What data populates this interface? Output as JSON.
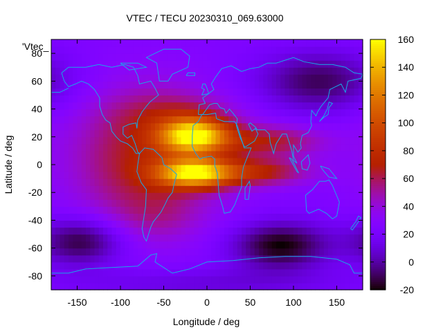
{
  "chart_data": {
    "type": "heatmap",
    "title": "VTEC / TECU 20230310_069.63000",
    "xlabel": "Longitude / deg",
    "ylabel": "Latitude / deg",
    "series_key": "'Vtec_",
    "xlim": [
      -180,
      180
    ],
    "ylim": [
      -90,
      90
    ],
    "xticks": [
      -150,
      -100,
      -50,
      0,
      50,
      100,
      150
    ],
    "yticks": [
      -80,
      -60,
      -40,
      -20,
      0,
      20,
      40,
      60,
      80
    ],
    "colorbar": {
      "range": [
        -20,
        160
      ],
      "ticks": [
        -20,
        0,
        20,
        40,
        60,
        80,
        100,
        120,
        140,
        160
      ],
      "palette": "black-purple-red-orange-yellow"
    },
    "background_value": 25,
    "features": [
      {
        "name": "equatorial crest north",
        "lon": -15,
        "lat": 21,
        "slon": 28,
        "slat": 9,
        "value": 140
      },
      {
        "name": "equatorial crest south",
        "lon": -15,
        "lat": -6,
        "slon": 30,
        "slat": 7,
        "value": 130
      },
      {
        "name": "dayside bulge",
        "lon": -70,
        "lat": 5,
        "slon": 60,
        "slat": 35,
        "value": 70
      },
      {
        "name": "eastern north tongue",
        "lon": 70,
        "lat": 17,
        "slon": 45,
        "slat": 8,
        "value": 65
      },
      {
        "name": "eastern south tongue",
        "lon": 55,
        "lat": -5,
        "slon": 45,
        "slat": 7,
        "value": 70
      },
      {
        "name": "northern mid-lat plume",
        "lon": -30,
        "lat": 38,
        "slon": 50,
        "slat": 10,
        "value": 40
      },
      {
        "name": "southern mid-lat plume",
        "lon": -60,
        "lat": -38,
        "slon": 35,
        "slat": 12,
        "value": 35
      },
      {
        "name": "southern trough",
        "lon": 85,
        "lat": -58,
        "slon": 40,
        "slat": 12,
        "value": -20
      },
      {
        "name": "south pacific trough",
        "lon": -145,
        "lat": -55,
        "slon": 35,
        "slat": 12,
        "value": -15
      },
      {
        "name": "north pacific trough",
        "lon": 130,
        "lat": 60,
        "slon": 50,
        "slat": 15,
        "value": -10
      },
      {
        "name": "polar enhancement",
        "lon": 0,
        "lat": -85,
        "slon": 120,
        "slat": 8,
        "value": 10
      }
    ]
  }
}
